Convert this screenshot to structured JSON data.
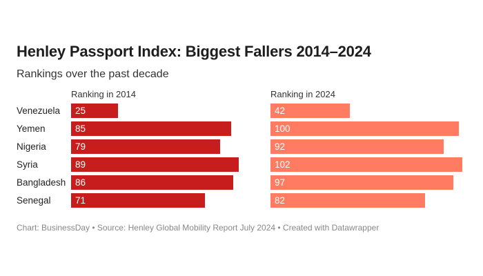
{
  "title": "Henley Passport Index: Biggest Fallers 2014–2024",
  "subtitle": "Rankings over the past decade",
  "footer": "Chart: BusinessDay • Source: Henley Global Mobility Report July 2024 • Created with Datawrapper",
  "chart_data": {
    "type": "bar",
    "orientation": "horizontal",
    "categories": [
      "Venezuela",
      "Yemen",
      "Nigeria",
      "Syria",
      "Bangladesh",
      "Senegal"
    ],
    "series": [
      {
        "name": "Ranking in 2014",
        "values": [
          25,
          85,
          79,
          89,
          86,
          71
        ],
        "color": "#c71e1d"
      },
      {
        "name": "Ranking in 2024",
        "values": [
          42,
          100,
          92,
          102,
          97,
          82
        ],
        "color": "#ff7b61"
      }
    ],
    "xlim": [
      0,
      102
    ],
    "grid": false
  }
}
